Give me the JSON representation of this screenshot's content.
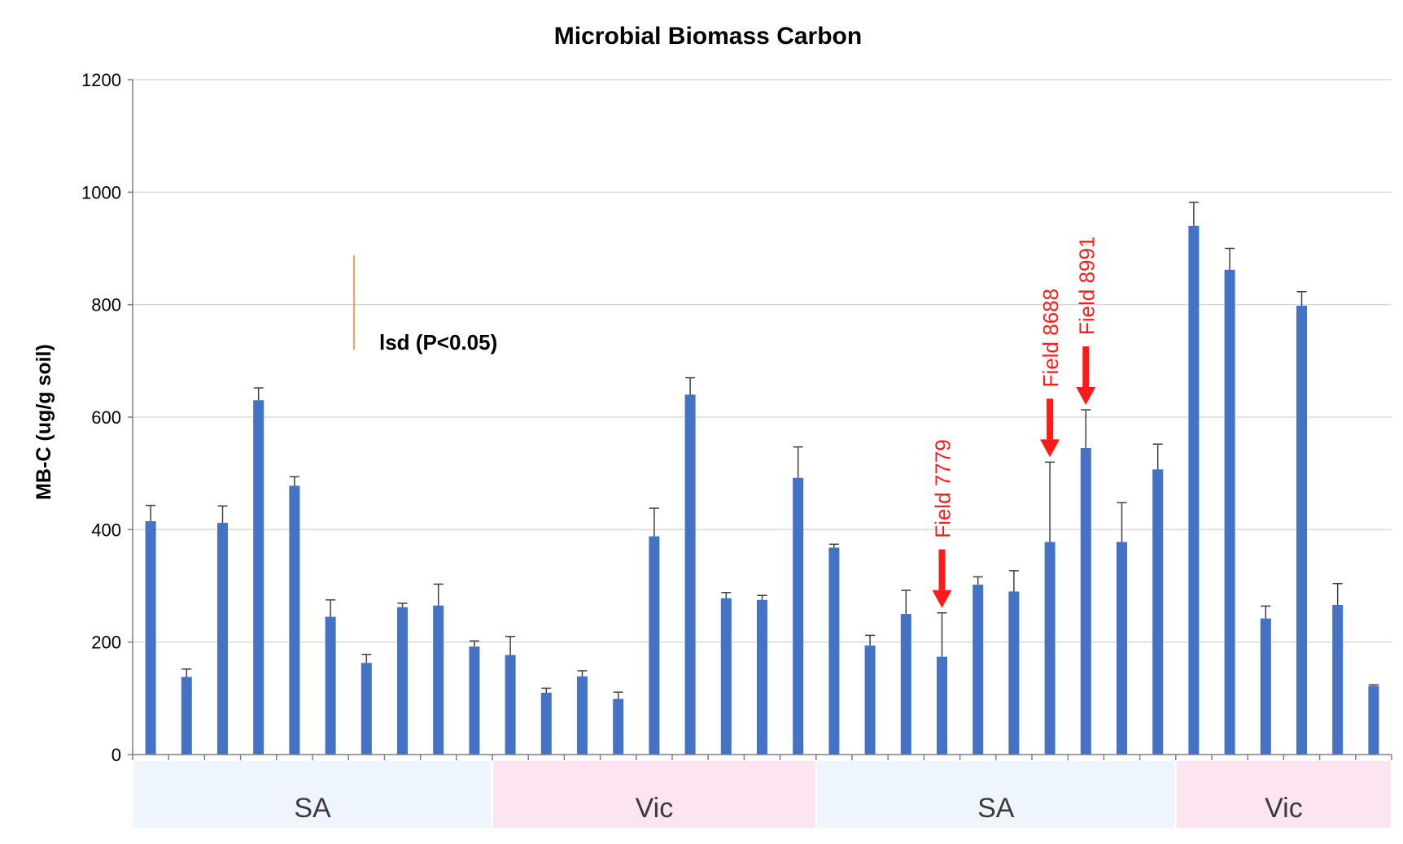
{
  "chart_data": {
    "type": "bar",
    "title": "Microbial Biomass Carbon",
    "xlabel": "",
    "ylabel": "MB-C (ug/g soil)",
    "ylim": [
      0,
      1200
    ],
    "yticks": [
      0,
      200,
      400,
      600,
      800,
      1000,
      1200
    ],
    "grid": true,
    "bar_color": "#4472c4",
    "gridline_color": "#d9d9d9",
    "values": [
      415,
      138,
      412,
      630,
      478,
      245,
      163,
      262,
      265,
      192,
      177,
      110,
      139,
      99,
      388,
      640,
      278,
      275,
      492,
      368,
      194,
      250,
      174,
      302,
      290,
      378,
      545,
      378,
      507,
      940,
      862,
      242,
      798,
      266,
      122
    ],
    "errors": [
      28,
      14,
      30,
      22,
      16,
      30,
      15,
      7,
      38,
      10,
      33,
      8,
      10,
      12,
      50,
      30,
      10,
      8,
      55,
      6,
      18,
      42,
      78,
      14,
      37,
      142,
      68,
      70,
      45,
      42,
      38,
      22,
      25,
      38,
      2
    ],
    "lsd": {
      "label": "lsd (P<0.05)",
      "low": 720,
      "high": 888,
      "color": "#ed7d31"
    },
    "regions": [
      {
        "label": "SA",
        "start": 0,
        "end": 9,
        "color": "#eef5fc"
      },
      {
        "label": "Vic",
        "start": 10,
        "end": 18,
        "color": "#fce4f0"
      },
      {
        "label": "SA",
        "start": 19,
        "end": 28,
        "color": "#eef5fc"
      },
      {
        "label": "Vic",
        "start": 29,
        "end": 34,
        "color": "#fce4f0"
      }
    ],
    "annotations": [
      {
        "label": "Field 7779",
        "bar": 22,
        "color": "#ff1a1a"
      },
      {
        "label": "Field 8688",
        "bar": 25,
        "color": "#ff1a1a"
      },
      {
        "label": "Field 8991",
        "bar": 26,
        "color": "#ff1a1a"
      }
    ]
  }
}
